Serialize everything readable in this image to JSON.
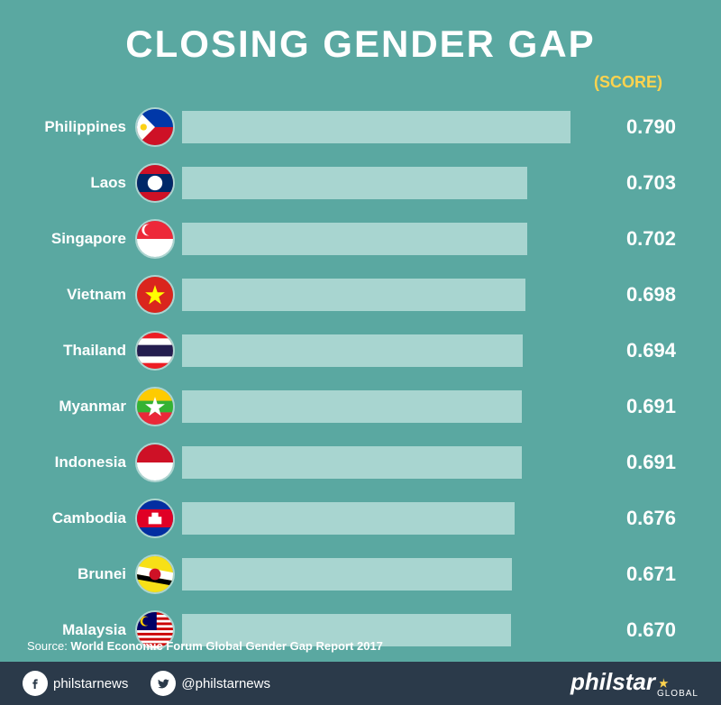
{
  "title": "CLOSING GENDER GAP",
  "title_fontsize": 42,
  "title_color": "#ffffff",
  "score_header": "(SCORE)",
  "score_header_color": "#ffd34e",
  "score_header_fontsize": 18,
  "background_color": "#5aa8a1",
  "bar_color": "#a8d5d0",
  "text_color": "#ffffff",
  "label_fontsize": 17,
  "score_fontsize": 22,
  "bar_max_value": 0.84,
  "countries": [
    {
      "name": "Philippines",
      "score": "0.790",
      "value": 0.79,
      "flag": "philippines"
    },
    {
      "name": "Laos",
      "score": "0.703",
      "value": 0.703,
      "flag": "laos"
    },
    {
      "name": "Singapore",
      "score": "0.702",
      "value": 0.702,
      "flag": "singapore"
    },
    {
      "name": "Vietnam",
      "score": "0.698",
      "value": 0.698,
      "flag": "vietnam"
    },
    {
      "name": "Thailand",
      "score": "0.694",
      "value": 0.694,
      "flag": "thailand"
    },
    {
      "name": "Myanmar",
      "score": "0.691",
      "value": 0.691,
      "flag": "myanmar"
    },
    {
      "name": "Indonesia",
      "score": "0.691",
      "value": 0.691,
      "flag": "indonesia"
    },
    {
      "name": "Cambodia",
      "score": "0.676",
      "value": 0.676,
      "flag": "cambodia"
    },
    {
      "name": "Brunei",
      "score": "0.671",
      "value": 0.671,
      "flag": "brunei"
    },
    {
      "name": "Malaysia",
      "score": "0.670",
      "value": 0.67,
      "flag": "malaysia"
    }
  ],
  "source_label": "Source: ",
  "source_name": "World Economic Forum Global Gender Gap Report 2017",
  "footer_bg": "#2b3a4a",
  "footer_text_color": "#ffffff",
  "social_fb": "philstarnews",
  "social_tw": "@philstarnews",
  "logo_main": "philstar",
  "logo_sub": "GLOBAL",
  "logo_accent": "#ffd34e"
}
